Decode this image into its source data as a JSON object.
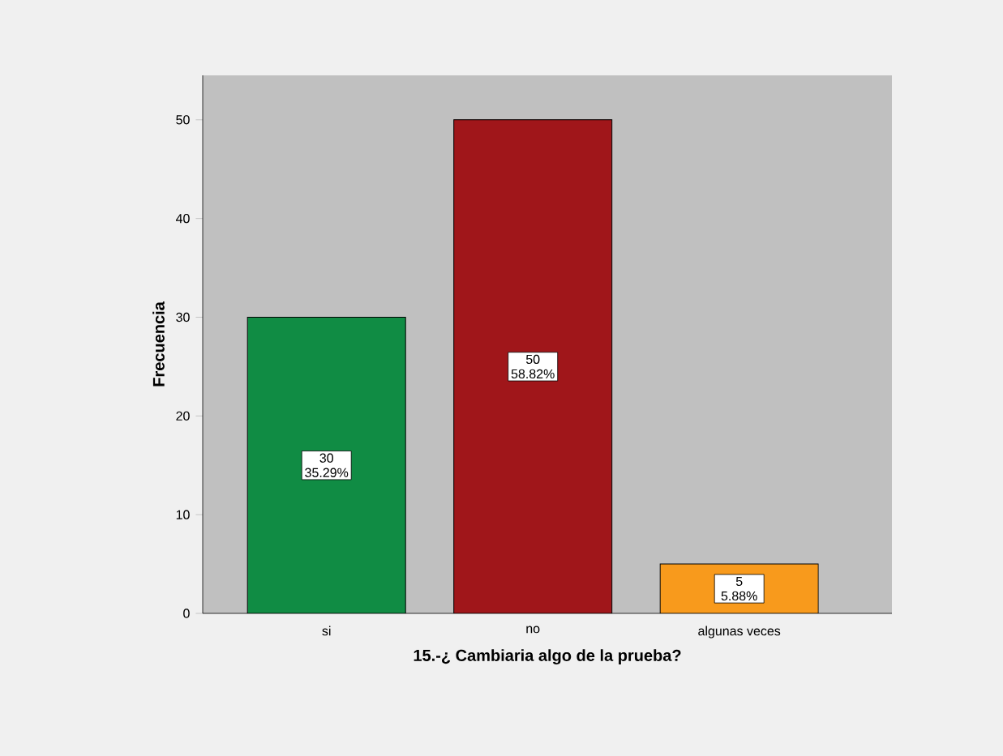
{
  "chart_data": {
    "type": "bar",
    "xlabel": "15.-¿ Cambiaria algo de la prueba?",
    "ylabel": "Frecuencia",
    "categories": [
      "si",
      "no",
      "algunas veces"
    ],
    "values": [
      30,
      50,
      5
    ],
    "colors": [
      "#108c44",
      "#a0161a",
      "#f89a1c"
    ],
    "value_labels": [
      "30 35.29%",
      "50 58.82%",
      "5 5.88%"
    ],
    "ylim": [
      0,
      54.5
    ],
    "yticks": [
      0,
      10,
      20,
      30,
      40,
      50
    ]
  }
}
